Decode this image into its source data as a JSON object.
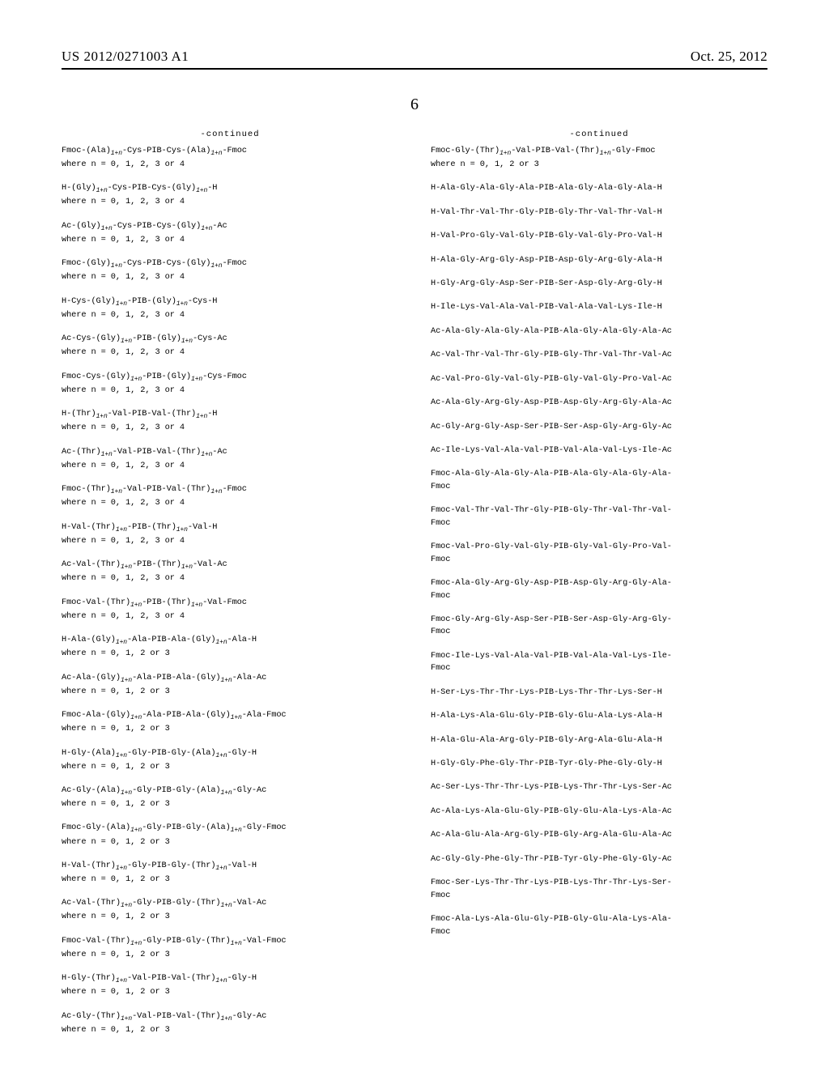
{
  "header": {
    "publication_number": "US 2012/0271003 A1",
    "date": "Oct. 25, 2012"
  },
  "page_number": "6",
  "continued_label": "-continued",
  "columns": {
    "left": [
      {
        "seq": "Fmoc-(Ala)_{1+n}-Cys-PIB-Cys-(Ala)_{1+n}-Fmoc",
        "where": "where n = 0, 1, 2, 3 or 4"
      },
      {
        "seq": "H-(Gly)_{1+n}-Cys-PIB-Cys-(Gly)_{1+n}-H",
        "where": "where n = 0, 1, 2, 3 or 4"
      },
      {
        "seq": "Ac-(Gly)_{1+n}-Cys-PIB-Cys-(Gly)_{1+n}-Ac",
        "where": "where n = 0, 1, 2, 3 or 4"
      },
      {
        "seq": "Fmoc-(Gly)_{1+n}-Cys-PIB-Cys-(Gly)_{1+n}-Fmoc",
        "where": "where n = 0, 1, 2, 3 or 4"
      },
      {
        "seq": "H-Cys-(Gly)_{1+n}-PIB-(Gly)_{1+n}-Cys-H",
        "where": "where n = 0, 1, 2, 3 or 4"
      },
      {
        "seq": "Ac-Cys-(Gly)_{1+n}-PIB-(Gly)_{1+n}-Cys-Ac",
        "where": "where n = 0, 1, 2, 3 or 4"
      },
      {
        "seq": "Fmoc-Cys-(Gly)_{1+n}-PIB-(Gly)_{1+n}-Cys-Fmoc",
        "where": "where n = 0, 1, 2, 3 or 4"
      },
      {
        "seq": "H-(Thr)_{1+n}-Val-PIB-Val-(Thr)_{1+n}-H",
        "where": "where n = 0, 1, 2, 3 or 4"
      },
      {
        "seq": "Ac-(Thr)_{1+n}-Val-PIB-Val-(Thr)_{1+n}-Ac",
        "where": "where n = 0, 1, 2, 3 or 4"
      },
      {
        "seq": "Fmoc-(Thr)_{1+n}-Val-PIB-Val-(Thr)_{1+n}-Fmoc",
        "where": "where n = 0, 1, 2, 3 or 4"
      },
      {
        "seq": "H-Val-(Thr)_{1+n}-PIB-(Thr)_{1+n}-Val-H",
        "where": "where n = 0, 1, 2, 3 or 4"
      },
      {
        "seq": "Ac-Val-(Thr)_{1+n}-PIB-(Thr)_{1+n}-Val-Ac",
        "where": "where n = 0, 1, 2, 3 or 4"
      },
      {
        "seq": "Fmoc-Val-(Thr)_{1+n}-PIB-(Thr)_{1+n}-Val-Fmoc",
        "where": "where n = 0, 1, 2, 3 or 4"
      },
      {
        "seq": "H-Ala-(Gly)_{1+n}-Ala-PIB-Ala-(Gly)_{1+n}-Ala-H",
        "where": "where n = 0, 1, 2 or 3"
      },
      {
        "seq": "Ac-Ala-(Gly)_{1+n}-Ala-PIB-Ala-(Gly)_{1+n}-Ala-Ac",
        "where": "where n = 0, 1, 2 or 3"
      },
      {
        "seq": "Fmoc-Ala-(Gly)_{1+n}-Ala-PIB-Ala-(Gly)_{1+n}-Ala-Fmoc",
        "where": "where n = 0, 1, 2 or 3"
      },
      {
        "seq": "H-Gly-(Ala)_{1+n}-Gly-PIB-Gly-(Ala)_{1+n}-Gly-H",
        "where": "where n = 0, 1, 2 or 3"
      },
      {
        "seq": "Ac-Gly-(Ala)_{1+n}-Gly-PIB-Gly-(Ala)_{1+n}-Gly-Ac",
        "where": "where n = 0, 1, 2 or 3"
      },
      {
        "seq": "Fmoc-Gly-(Ala)_{1+n}-Gly-PIB-Gly-(Ala)_{1+n}-Gly-Fmoc",
        "where": "where n = 0, 1, 2 or 3"
      },
      {
        "seq": "H-Val-(Thr)_{1+n}-Gly-PIB-Gly-(Thr)_{1+n}-Val-H",
        "where": "where n = 0, 1, 2 or 3"
      },
      {
        "seq": "Ac-Val-(Thr)_{1+n}-Gly-PIB-Gly-(Thr)_{1+n}-Val-Ac",
        "where": "where n = 0, 1, 2 or 3"
      },
      {
        "seq": "Fmoc-Val-(Thr)_{1+n}-Gly-PIB-Gly-(Thr)_{1+n}-Val-Fmoc",
        "where": "where n = 0, 1, 2 or 3"
      },
      {
        "seq": "H-Gly-(Thr)_{1+n}-Val-PIB-Val-(Thr)_{1+n}-Gly-H",
        "where": "where n = 0, 1, 2 or 3"
      },
      {
        "seq": "Ac-Gly-(Thr)_{1+n}-Val-PIB-Val-(Thr)_{1+n}-Gly-Ac",
        "where": "where n = 0, 1, 2 or 3"
      }
    ],
    "right": [
      {
        "seq": "Fmoc-Gly-(Thr)_{1+n}-Val-PIB-Val-(Thr)_{1+n}-Gly-Fmoc",
        "where": "where n = 0, 1, 2 or 3"
      },
      {
        "seq": "H-Ala-Gly-Ala-Gly-Ala-PIB-Ala-Gly-Ala-Gly-Ala-H"
      },
      {
        "seq": "H-Val-Thr-Val-Thr-Gly-PIB-Gly-Thr-Val-Thr-Val-H"
      },
      {
        "seq": "H-Val-Pro-Gly-Val-Gly-PIB-Gly-Val-Gly-Pro-Val-H"
      },
      {
        "seq": "H-Ala-Gly-Arg-Gly-Asp-PIB-Asp-Gly-Arg-Gly-Ala-H"
      },
      {
        "seq": "H-Gly-Arg-Gly-Asp-Ser-PIB-Ser-Asp-Gly-Arg-Gly-H"
      },
      {
        "seq": "H-Ile-Lys-Val-Ala-Val-PIB-Val-Ala-Val-Lys-Ile-H"
      },
      {
        "seq": "Ac-Ala-Gly-Ala-Gly-Ala-PIB-Ala-Gly-Ala-Gly-Ala-Ac"
      },
      {
        "seq": "Ac-Val-Thr-Val-Thr-Gly-PIB-Gly-Thr-Val-Thr-Val-Ac"
      },
      {
        "seq": "Ac-Val-Pro-Gly-Val-Gly-PIB-Gly-Val-Gly-Pro-Val-Ac"
      },
      {
        "seq": "Ac-Ala-Gly-Arg-Gly-Asp-PIB-Asp-Gly-Arg-Gly-Ala-Ac"
      },
      {
        "seq": "Ac-Gly-Arg-Gly-Asp-Ser-PIB-Ser-Asp-Gly-Arg-Gly-Ac"
      },
      {
        "seq": "Ac-Ile-Lys-Val-Ala-Val-PIB-Val-Ala-Val-Lys-Ile-Ac"
      },
      {
        "seq": "Fmoc-Ala-Gly-Ala-Gly-Ala-PIB-Ala-Gly-Ala-Gly-Ala-",
        "seq2": "Fmoc"
      },
      {
        "seq": "Fmoc-Val-Thr-Val-Thr-Gly-PIB-Gly-Thr-Val-Thr-Val-",
        "seq2": "Fmoc"
      },
      {
        "seq": "Fmoc-Val-Pro-Gly-Val-Gly-PIB-Gly-Val-Gly-Pro-Val-",
        "seq2": "Fmoc"
      },
      {
        "seq": "Fmoc-Ala-Gly-Arg-Gly-Asp-PIB-Asp-Gly-Arg-Gly-Ala-",
        "seq2": "Fmoc"
      },
      {
        "seq": "Fmoc-Gly-Arg-Gly-Asp-Ser-PIB-Ser-Asp-Gly-Arg-Gly-",
        "seq2": "Fmoc"
      },
      {
        "seq": "Fmoc-Ile-Lys-Val-Ala-Val-PIB-Val-Ala-Val-Lys-Ile-",
        "seq2": "Fmoc"
      },
      {
        "seq": "H-Ser-Lys-Thr-Thr-Lys-PIB-Lys-Thr-Thr-Lys-Ser-H"
      },
      {
        "seq": "H-Ala-Lys-Ala-Glu-Gly-PIB-Gly-Glu-Ala-Lys-Ala-H"
      },
      {
        "seq": "H-Ala-Glu-Ala-Arg-Gly-PIB-Gly-Arg-Ala-Glu-Ala-H"
      },
      {
        "seq": "H-Gly-Gly-Phe-Gly-Thr-PIB-Tyr-Gly-Phe-Gly-Gly-H"
      },
      {
        "seq": "Ac-Ser-Lys-Thr-Thr-Lys-PIB-Lys-Thr-Thr-Lys-Ser-Ac"
      },
      {
        "seq": "Ac-Ala-Lys-Ala-Glu-Gly-PIB-Gly-Glu-Ala-Lys-Ala-Ac"
      },
      {
        "seq": "Ac-Ala-Glu-Ala-Arg-Gly-PIB-Gly-Arg-Ala-Glu-Ala-Ac"
      },
      {
        "seq": "Ac-Gly-Gly-Phe-Gly-Thr-PIB-Tyr-Gly-Phe-Gly-Gly-Ac"
      },
      {
        "seq": "Fmoc-Ser-Lys-Thr-Thr-Lys-PIB-Lys-Thr-Thr-Lys-Ser-",
        "seq2": "Fmoc"
      },
      {
        "seq": "Fmoc-Ala-Lys-Ala-Glu-Gly-PIB-Gly-Glu-Ala-Lys-Ala-",
        "seq2": "Fmoc"
      }
    ]
  }
}
